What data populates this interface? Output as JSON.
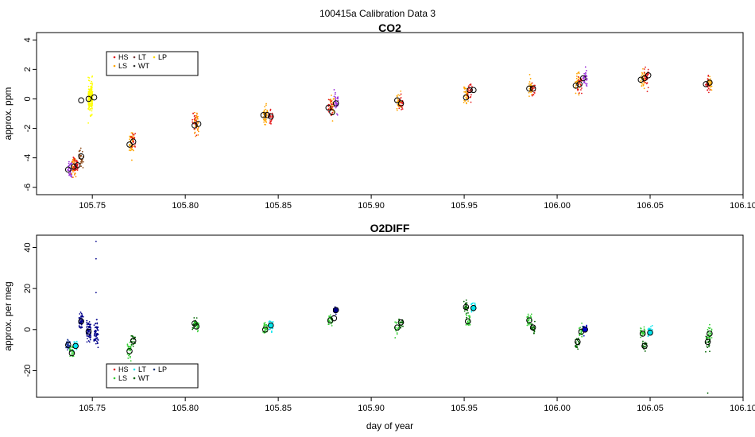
{
  "suptitle": "100415a   Calibration Data 3",
  "chart_data": [
    {
      "type": "scatter",
      "title": "CO2",
      "xlabel": "",
      "ylabel": "approx. ppm",
      "xlim": [
        105.72,
        106.1
      ],
      "ylim": [
        -6.5,
        4.5
      ],
      "xticks": [
        105.75,
        105.8,
        105.85,
        105.9,
        105.95,
        106.0,
        106.05,
        106.1
      ],
      "xtick_labels": [
        "105.75",
        "105.80",
        "105.85",
        "105.90",
        "105.95",
        "106.00",
        "106.05",
        "106.10"
      ],
      "yticks": [
        -6,
        -4,
        -2,
        0,
        2,
        4
      ],
      "ytick_labels": [
        "-6",
        "-4",
        "-2",
        "0",
        "2",
        "4"
      ],
      "legend_position": "top-left",
      "legend": [
        {
          "label": "HS",
          "color": "#e41a1c"
        },
        {
          "label": "LT",
          "color": "#7a3c3c"
        },
        {
          "label": "LP",
          "color": "#ffd700"
        },
        {
          "label": "LS",
          "color": "#ffa500"
        },
        {
          "label": "WT",
          "color": "#333333"
        }
      ],
      "clusters": [
        {
          "x": 105.738,
          "y": -4.7,
          "spread": 0.7,
          "color": "#9b30d9",
          "n": 40
        },
        {
          "x": 105.74,
          "y": -4.6,
          "spread": 0.6,
          "color": "#ff8c00",
          "n": 40
        },
        {
          "x": 105.741,
          "y": -4.5,
          "spread": 0.5,
          "color": "#e41a1c",
          "n": 35
        },
        {
          "x": 105.744,
          "y": -4.0,
          "spread": 0.6,
          "color": "#8b4513",
          "n": 30
        },
        {
          "x": 105.749,
          "y": 0.1,
          "spread": 1.0,
          "color": "#ffff00",
          "n": 160
        },
        {
          "x": 105.771,
          "y": -3.0,
          "spread": 0.8,
          "color": "#ffa500",
          "n": 40
        },
        {
          "x": 105.772,
          "y": -2.9,
          "spread": 0.7,
          "color": "#e41a1c",
          "n": 20
        },
        {
          "x": 105.806,
          "y": -1.7,
          "spread": 0.7,
          "color": "#ff8c00",
          "n": 40
        },
        {
          "x": 105.805,
          "y": -1.7,
          "spread": 0.6,
          "color": "#e41a1c",
          "n": 20
        },
        {
          "x": 105.843,
          "y": -1.1,
          "spread": 0.7,
          "color": "#ffa500",
          "n": 40
        },
        {
          "x": 105.846,
          "y": -1.2,
          "spread": 0.8,
          "color": "#e41a1c",
          "n": 25
        },
        {
          "x": 105.879,
          "y": -0.5,
          "spread": 0.7,
          "color": "#ffa500",
          "n": 35
        },
        {
          "x": 105.878,
          "y": -0.6,
          "spread": 0.7,
          "color": "#e41a1c",
          "n": 25
        },
        {
          "x": 105.881,
          "y": -0.3,
          "spread": 0.6,
          "color": "#9b30d9",
          "n": 30
        },
        {
          "x": 105.915,
          "y": -0.2,
          "spread": 0.6,
          "color": "#ffa500",
          "n": 35
        },
        {
          "x": 105.916,
          "y": -0.3,
          "spread": 0.5,
          "color": "#e41a1c",
          "n": 20
        },
        {
          "x": 105.951,
          "y": 0.3,
          "spread": 0.6,
          "color": "#ffa500",
          "n": 35
        },
        {
          "x": 105.953,
          "y": 0.5,
          "spread": 0.6,
          "color": "#e41a1c",
          "n": 25
        },
        {
          "x": 105.986,
          "y": 0.7,
          "spread": 0.6,
          "color": "#ffa500",
          "n": 35
        },
        {
          "x": 105.987,
          "y": 0.7,
          "spread": 0.5,
          "color": "#e41a1c",
          "n": 20
        },
        {
          "x": 106.011,
          "y": 1.0,
          "spread": 0.7,
          "color": "#ffa500",
          "n": 35
        },
        {
          "x": 106.012,
          "y": 1.0,
          "spread": 0.6,
          "color": "#e41a1c",
          "n": 25
        },
        {
          "x": 106.015,
          "y": 1.4,
          "spread": 0.6,
          "color": "#9b30d9",
          "n": 30
        },
        {
          "x": 106.046,
          "y": 1.4,
          "spread": 0.8,
          "color": "#ffa500",
          "n": 35
        },
        {
          "x": 106.048,
          "y": 1.5,
          "spread": 0.7,
          "color": "#e41a1c",
          "n": 30
        },
        {
          "x": 106.082,
          "y": 1.1,
          "spread": 0.5,
          "color": "#ffa500",
          "n": 30
        },
        {
          "x": 106.081,
          "y": 1.0,
          "spread": 0.5,
          "color": "#e41a1c",
          "n": 20
        }
      ],
      "means": [
        {
          "x": 105.737,
          "y": -4.8
        },
        {
          "x": 105.74,
          "y": -4.6
        },
        {
          "x": 105.742,
          "y": -4.5
        },
        {
          "x": 105.744,
          "y": -3.9
        },
        {
          "x": 105.744,
          "y": -0.1
        },
        {
          "x": 105.748,
          "y": 0.0
        },
        {
          "x": 105.751,
          "y": 0.1
        },
        {
          "x": 105.77,
          "y": -3.1
        },
        {
          "x": 105.772,
          "y": -2.9
        },
        {
          "x": 105.805,
          "y": -1.8
        },
        {
          "x": 105.807,
          "y": -1.7
        },
        {
          "x": 105.842,
          "y": -1.1
        },
        {
          "x": 105.844,
          "y": -1.1
        },
        {
          "x": 105.846,
          "y": -1.2
        },
        {
          "x": 105.877,
          "y": -0.6
        },
        {
          "x": 105.879,
          "y": -0.9
        },
        {
          "x": 105.881,
          "y": -0.3
        },
        {
          "x": 105.914,
          "y": -0.1
        },
        {
          "x": 105.916,
          "y": -0.3
        },
        {
          "x": 105.951,
          "y": 0.1
        },
        {
          "x": 105.953,
          "y": 0.6
        },
        {
          "x": 105.955,
          "y": 0.6
        },
        {
          "x": 105.985,
          "y": 0.7
        },
        {
          "x": 105.987,
          "y": 0.7
        },
        {
          "x": 106.01,
          "y": 0.9
        },
        {
          "x": 106.012,
          "y": 1.0
        },
        {
          "x": 106.014,
          "y": 1.4
        },
        {
          "x": 106.045,
          "y": 1.3
        },
        {
          "x": 106.047,
          "y": 1.4
        },
        {
          "x": 106.049,
          "y": 1.6
        },
        {
          "x": 106.08,
          "y": 1.0
        },
        {
          "x": 106.082,
          "y": 1.1
        }
      ]
    },
    {
      "type": "scatter",
      "title": "O2DIFF",
      "xlabel": "day of year",
      "ylabel": "approx. per meg",
      "xlim": [
        105.72,
        106.1
      ],
      "ylim": [
        -33,
        46
      ],
      "xticks": [
        105.75,
        105.8,
        105.85,
        105.9,
        105.95,
        106.0,
        106.05,
        106.1
      ],
      "xtick_labels": [
        "105.75",
        "105.80",
        "105.85",
        "105.90",
        "105.95",
        "106.00",
        "106.05",
        "106.10"
      ],
      "yticks": [
        -20,
        0,
        20,
        40
      ],
      "ytick_labels": [
        "-20",
        "0",
        "20",
        "40"
      ],
      "legend_position": "bottom-left",
      "legend": [
        {
          "label": "HS",
          "color": "#e41a1c"
        },
        {
          "label": "LT",
          "color": "#00e5ee"
        },
        {
          "label": "LP",
          "color": "#1f3b7a"
        },
        {
          "label": "LS",
          "color": "#32cd32"
        },
        {
          "label": "WT",
          "color": "#006400"
        }
      ],
      "clusters": [
        {
          "x": 105.737,
          "y": -7.5,
          "spread": 2.5,
          "color": "#1f3b9a",
          "n": 40
        },
        {
          "x": 105.739,
          "y": -11.0,
          "spread": 4.0,
          "color": "#32cd32",
          "n": 30
        },
        {
          "x": 105.741,
          "y": -8.0,
          "spread": 2.5,
          "color": "#00e5ee",
          "n": 25
        },
        {
          "x": 105.744,
          "y": 4.0,
          "spread": 4.0,
          "color": "#00008b",
          "n": 50
        },
        {
          "x": 105.748,
          "y": -1.0,
          "spread": 5.0,
          "color": "#00008b",
          "n": 70
        },
        {
          "x": 105.752,
          "y": -2.0,
          "spread": 6.0,
          "color": "#00008b",
          "n": 60
        },
        {
          "x": 105.77,
          "y": -10.0,
          "spread": 4.0,
          "color": "#32cd32",
          "n": 35
        },
        {
          "x": 105.772,
          "y": -5.0,
          "spread": 3.0,
          "color": "#006400",
          "n": 20
        },
        {
          "x": 105.805,
          "y": 3.0,
          "spread": 2.5,
          "color": "#006400",
          "n": 20
        },
        {
          "x": 105.806,
          "y": 2.0,
          "spread": 2.5,
          "color": "#32cd32",
          "n": 30
        },
        {
          "x": 105.843,
          "y": 0.0,
          "spread": 3.0,
          "color": "#32cd32",
          "n": 30
        },
        {
          "x": 105.846,
          "y": 2.0,
          "spread": 2.5,
          "color": "#00e5ee",
          "n": 25
        },
        {
          "x": 105.878,
          "y": 4.5,
          "spread": 2.5,
          "color": "#32cd32",
          "n": 30
        },
        {
          "x": 105.881,
          "y": 9.5,
          "spread": 2.0,
          "color": "#00008b",
          "n": 25
        },
        {
          "x": 105.914,
          "y": 1.0,
          "spread": 3.0,
          "color": "#32cd32",
          "n": 20
        },
        {
          "x": 105.916,
          "y": 3.5,
          "spread": 2.5,
          "color": "#006400",
          "n": 20
        },
        {
          "x": 105.951,
          "y": 11.0,
          "spread": 3.5,
          "color": "#006400",
          "n": 30
        },
        {
          "x": 105.952,
          "y": 4.0,
          "spread": 3.0,
          "color": "#32cd32",
          "n": 30
        },
        {
          "x": 105.955,
          "y": 10.5,
          "spread": 3.0,
          "color": "#00e5ee",
          "n": 30
        },
        {
          "x": 105.985,
          "y": 4.5,
          "spread": 3.0,
          "color": "#32cd32",
          "n": 30
        },
        {
          "x": 105.987,
          "y": 1.0,
          "spread": 2.5,
          "color": "#006400",
          "n": 25
        },
        {
          "x": 106.011,
          "y": -6.0,
          "spread": 3.0,
          "color": "#006400",
          "n": 25
        },
        {
          "x": 106.013,
          "y": -1.0,
          "spread": 3.0,
          "color": "#32cd32",
          "n": 25
        },
        {
          "x": 106.015,
          "y": 0.0,
          "spread": 2.5,
          "color": "#0000cd",
          "n": 25
        },
        {
          "x": 106.046,
          "y": -2.0,
          "spread": 3.0,
          "color": "#32cd32",
          "n": 25
        },
        {
          "x": 106.047,
          "y": -8.0,
          "spread": 2.5,
          "color": "#006400",
          "n": 20
        },
        {
          "x": 106.05,
          "y": -1.0,
          "spread": 3.0,
          "color": "#00e5ee",
          "n": 25
        },
        {
          "x": 106.081,
          "y": -6.0,
          "spread": 4.0,
          "color": "#006400",
          "n": 30
        },
        {
          "x": 106.082,
          "y": -2.0,
          "spread": 3.5,
          "color": "#32cd32",
          "n": 30
        }
      ],
      "outliers": [
        {
          "x": 105.752,
          "y": 43.0,
          "color": "#00008b"
        },
        {
          "x": 105.752,
          "y": 34.5,
          "color": "#00008b"
        },
        {
          "x": 105.752,
          "y": 18.0,
          "color": "#00008b"
        },
        {
          "x": 106.081,
          "y": -31.0,
          "color": "#006400"
        }
      ],
      "means": [
        {
          "x": 105.737,
          "y": -7.5,
          "fill": "none"
        },
        {
          "x": 105.739,
          "y": -11.5,
          "fill": "none"
        },
        {
          "x": 105.741,
          "y": -8.0,
          "fill": "#00e5ee"
        },
        {
          "x": 105.744,
          "y": 4.0,
          "fill": "none"
        },
        {
          "x": 105.748,
          "y": -1.0,
          "fill": "none"
        },
        {
          "x": 105.77,
          "y": -10.5,
          "fill": "none"
        },
        {
          "x": 105.772,
          "y": -5.5,
          "fill": "none"
        },
        {
          "x": 105.805,
          "y": 3.0,
          "fill": "none"
        },
        {
          "x": 105.806,
          "y": 1.5,
          "fill": "none"
        },
        {
          "x": 105.843,
          "y": 0.0,
          "fill": "none"
        },
        {
          "x": 105.846,
          "y": 2.0,
          "fill": "#00e5ee"
        },
        {
          "x": 105.878,
          "y": 4.5,
          "fill": "none"
        },
        {
          "x": 105.88,
          "y": 5.5,
          "fill": "none"
        },
        {
          "x": 105.881,
          "y": 9.5,
          "fill": "#00008b"
        },
        {
          "x": 105.914,
          "y": 1.0,
          "fill": "none"
        },
        {
          "x": 105.916,
          "y": 3.5,
          "fill": "none"
        },
        {
          "x": 105.951,
          "y": 11.0,
          "fill": "none"
        },
        {
          "x": 105.952,
          "y": 4.0,
          "fill": "none"
        },
        {
          "x": 105.955,
          "y": 10.5,
          "fill": "#00e5ee"
        },
        {
          "x": 105.985,
          "y": 4.5,
          "fill": "none"
        },
        {
          "x": 105.987,
          "y": 1.0,
          "fill": "none"
        },
        {
          "x": 106.011,
          "y": -6.0,
          "fill": "none"
        },
        {
          "x": 106.013,
          "y": -1.0,
          "fill": "none"
        },
        {
          "x": 106.015,
          "y": 0.0,
          "fill": "#0000cd"
        },
        {
          "x": 106.046,
          "y": -2.0,
          "fill": "none"
        },
        {
          "x": 106.047,
          "y": -8.0,
          "fill": "none"
        },
        {
          "x": 106.05,
          "y": -1.5,
          "fill": "#00e5ee"
        },
        {
          "x": 106.081,
          "y": -6.0,
          "fill": "none"
        },
        {
          "x": 106.082,
          "y": -2.0,
          "fill": "none"
        }
      ]
    }
  ]
}
